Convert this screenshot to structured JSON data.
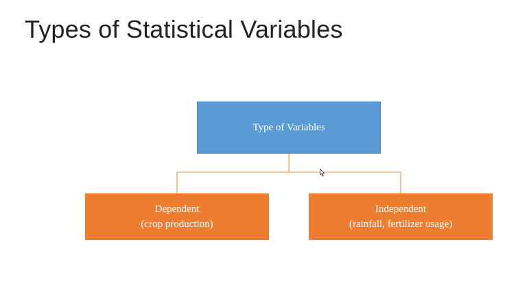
{
  "slide": {
    "title": "Types of Statistical Variables"
  },
  "diagram": {
    "root": {
      "label": "Type of Variables",
      "color": "#5b9bd5"
    },
    "children": [
      {
        "label": "Dependent",
        "sublabel": "(crop production)",
        "color": "#ed7d31"
      },
      {
        "label": "Independent",
        "sublabel": "(rainfall, fertilizer usage)",
        "color": "#ed7d31"
      }
    ],
    "connector_color": "#f0a264"
  },
  "icons": {
    "cursor": "mouse-pointer-icon"
  }
}
